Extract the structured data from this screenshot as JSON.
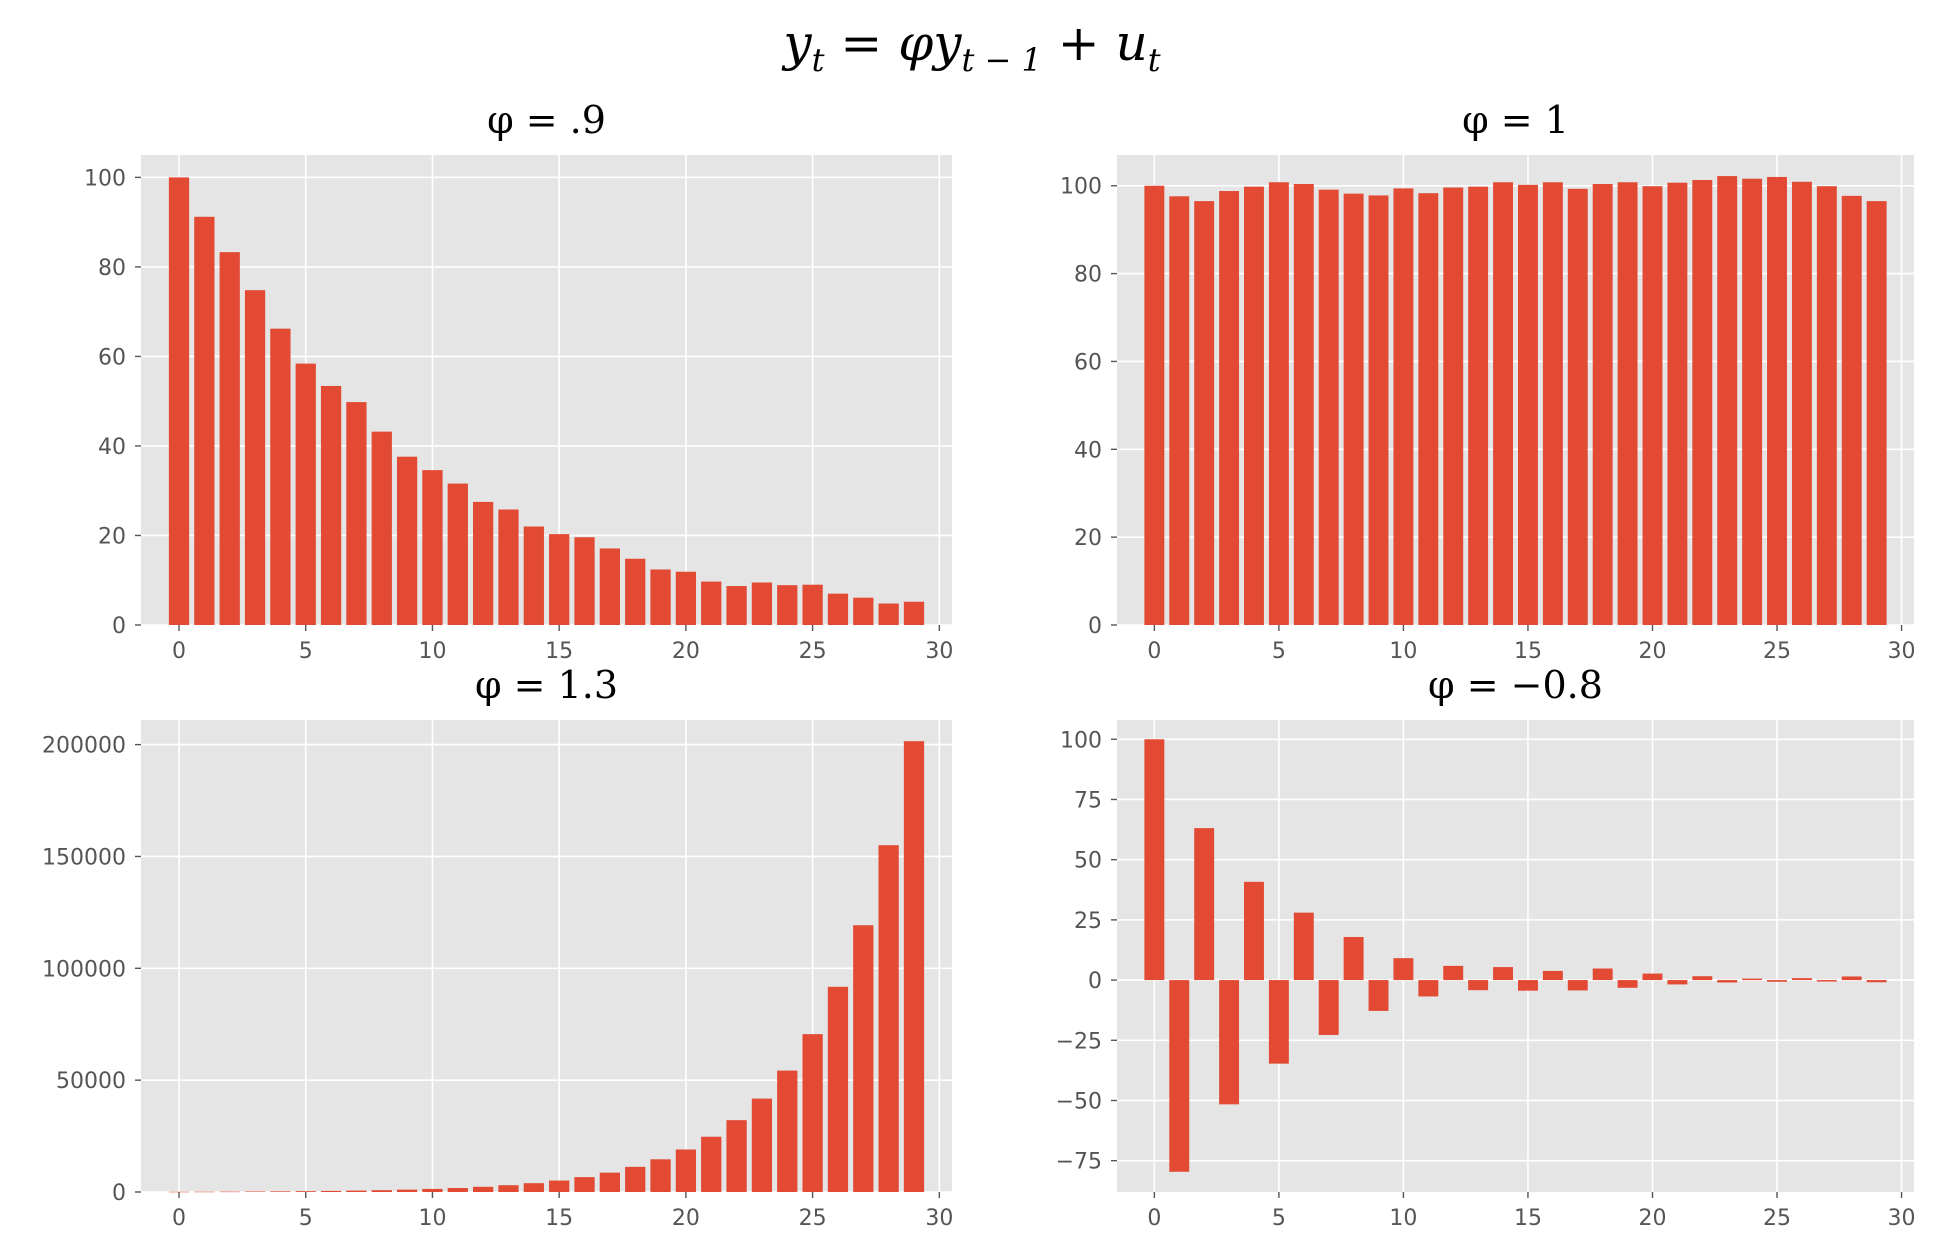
{
  "suptitle": "y_t = φy_{t−1} + u_t",
  "style": {
    "bar_color": "#E24A33",
    "axes_bg": "#E5E5E5",
    "grid_color": "#FFFFFF",
    "tick_color": "#555555"
  },
  "chart_data": [
    {
      "type": "bar",
      "title": "φ = .9",
      "x": [
        0,
        1,
        2,
        3,
        4,
        5,
        6,
        7,
        8,
        9,
        10,
        11,
        12,
        13,
        14,
        15,
        16,
        17,
        18,
        19,
        20,
        21,
        22,
        23,
        24,
        25,
        26,
        27,
        28,
        29
      ],
      "values": [
        100,
        91.2,
        83.3,
        74.8,
        66.2,
        58.4,
        53.4,
        49.8,
        43.2,
        37.6,
        34.6,
        31.6,
        27.5,
        25.8,
        22.0,
        20.3,
        19.6,
        17.1,
        14.8,
        12.4,
        11.9,
        9.7,
        8.7,
        9.5,
        8.9,
        9.0,
        7.0,
        6.1,
        4.8,
        5.2
      ],
      "xlim": [
        -1.5,
        30.5
      ],
      "ylim": [
        0,
        105
      ],
      "xticks": [
        0,
        5,
        10,
        15,
        20,
        25,
        30
      ],
      "yticks": [
        0,
        20,
        40,
        60,
        80,
        100
      ],
      "grid": true
    },
    {
      "type": "bar",
      "title": "φ = 1",
      "x": [
        0,
        1,
        2,
        3,
        4,
        5,
        6,
        7,
        8,
        9,
        10,
        11,
        12,
        13,
        14,
        15,
        16,
        17,
        18,
        19,
        20,
        21,
        22,
        23,
        24,
        25,
        26,
        27,
        28,
        29
      ],
      "values": [
        100,
        97.6,
        96.5,
        98.8,
        99.8,
        100.8,
        100.4,
        99.1,
        98.2,
        97.8,
        99.4,
        98.3,
        99.6,
        99.8,
        100.8,
        100.2,
        100.8,
        99.3,
        100.4,
        100.8,
        99.9,
        100.7,
        101.3,
        102.2,
        101.6,
        102.0,
        100.9,
        99.9,
        97.7,
        96.5
      ],
      "xlim": [
        -1.5,
        30.5
      ],
      "ylim": [
        0,
        107
      ],
      "xticks": [
        0,
        5,
        10,
        15,
        20,
        25,
        30
      ],
      "yticks": [
        0,
        20,
        40,
        60,
        80,
        100
      ],
      "grid": true
    },
    {
      "type": "bar",
      "title": "φ = 1.3",
      "x": [
        0,
        1,
        2,
        3,
        4,
        5,
        6,
        7,
        8,
        9,
        10,
        11,
        12,
        13,
        14,
        15,
        16,
        17,
        18,
        19,
        20,
        21,
        22,
        23,
        24,
        25,
        26,
        27,
        28,
        29
      ],
      "values": [
        100,
        130,
        169,
        220,
        286,
        371,
        483,
        627,
        816,
        1060,
        1379,
        1792,
        2330,
        3029,
        3937,
        5119,
        6654,
        8650,
        11246,
        14619,
        19005,
        24706,
        32118,
        41754,
        54280,
        70564,
        91733,
        119253,
        155029,
        201538
      ],
      "xlim": [
        -1.5,
        30.5
      ],
      "ylim": [
        0,
        211000
      ],
      "xticks": [
        0,
        5,
        10,
        15,
        20,
        25,
        30
      ],
      "yticks": [
        0,
        50000,
        100000,
        150000,
        200000
      ],
      "grid": true
    },
    {
      "type": "bar",
      "title": "φ = −0.8",
      "x": [
        0,
        1,
        2,
        3,
        4,
        5,
        6,
        7,
        8,
        9,
        10,
        11,
        12,
        13,
        14,
        15,
        16,
        17,
        18,
        19,
        20,
        21,
        22,
        23,
        24,
        25,
        26,
        27,
        28,
        29
      ],
      "values": [
        100,
        -79.6,
        63.1,
        -51.6,
        40.8,
        -34.7,
        28.0,
        -22.8,
        17.9,
        -12.8,
        9.1,
        -6.8,
        5.9,
        -4.2,
        5.4,
        -4.4,
        3.8,
        -4.3,
        4.8,
        -3.2,
        2.7,
        -1.8,
        1.6,
        -1.0,
        0.6,
        -0.7,
        0.8,
        -0.6,
        1.5,
        -0.9
      ],
      "xlim": [
        -1.5,
        30.5
      ],
      "ylim": [
        -88,
        108
      ],
      "xticks": [
        0,
        5,
        10,
        15,
        20,
        25,
        30
      ],
      "yticks": [
        -75,
        -50,
        -25,
        0,
        25,
        50,
        75,
        100
      ],
      "grid": true
    }
  ]
}
